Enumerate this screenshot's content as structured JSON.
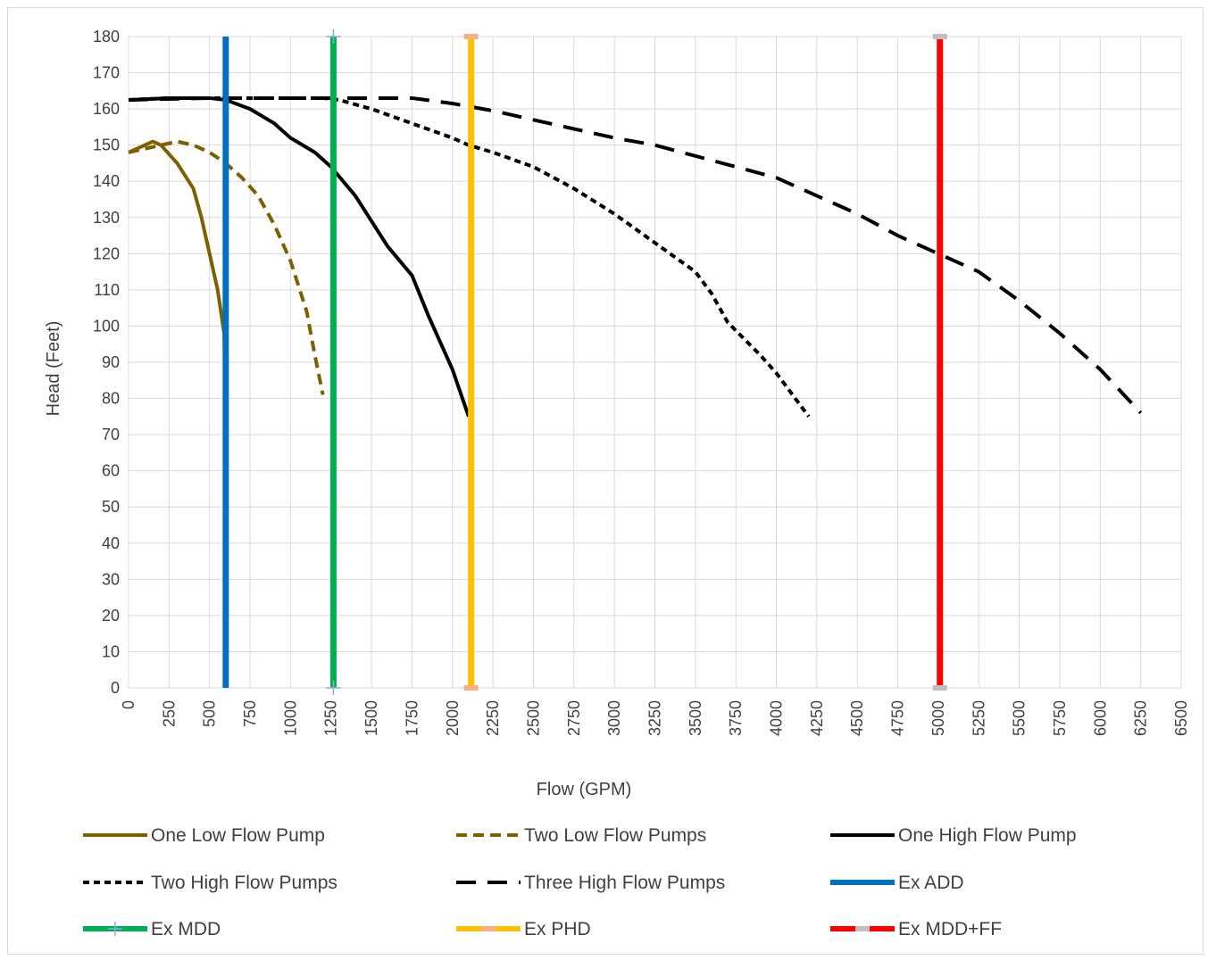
{
  "chart_data": {
    "type": "line",
    "title": "",
    "xlabel": "Flow (GPM)",
    "ylabel": "Head (Feet)",
    "xlim": [
      0,
      6500
    ],
    "ylim": [
      0,
      180
    ],
    "xticks": [
      0,
      250,
      500,
      750,
      1000,
      1250,
      1500,
      1750,
      2000,
      2250,
      2500,
      2750,
      3000,
      3250,
      3500,
      3750,
      4000,
      4250,
      4500,
      4750,
      5000,
      5250,
      5500,
      5750,
      6000,
      6250,
      6500
    ],
    "yticks": [
      0,
      10,
      20,
      30,
      40,
      50,
      60,
      70,
      80,
      90,
      100,
      110,
      120,
      130,
      140,
      150,
      160,
      170,
      180
    ],
    "grid": true,
    "legend_position": "bottom",
    "series": [
      {
        "name": "One Low Flow Pump",
        "color": "#7F6000",
        "style": "solid",
        "width": 4,
        "points": [
          [
            0,
            148
          ],
          [
            100,
            150
          ],
          [
            150,
            151
          ],
          [
            200,
            150
          ],
          [
            300,
            145
          ],
          [
            400,
            138
          ],
          [
            450,
            130
          ],
          [
            500,
            120
          ],
          [
            550,
            110
          ],
          [
            590,
            98
          ],
          [
            600,
            80
          ]
        ]
      },
      {
        "name": "Two Low Flow Pumps",
        "color": "#7F6000",
        "style": "dashed",
        "width": 4,
        "points": [
          [
            0,
            148
          ],
          [
            200,
            150
          ],
          [
            300,
            151
          ],
          [
            400,
            150
          ],
          [
            500,
            148
          ],
          [
            600,
            145
          ],
          [
            700,
            141
          ],
          [
            800,
            136
          ],
          [
            900,
            128
          ],
          [
            1000,
            118
          ],
          [
            1100,
            104
          ],
          [
            1150,
            92
          ],
          [
            1200,
            81
          ]
        ]
      },
      {
        "name": "One High Flow Pump",
        "color": "#000000",
        "style": "solid",
        "width": 4,
        "points": [
          [
            0,
            162.5
          ],
          [
            250,
            163
          ],
          [
            500,
            163
          ],
          [
            600,
            162.5
          ],
          [
            750,
            160
          ],
          [
            900,
            156
          ],
          [
            1000,
            152
          ],
          [
            1150,
            148
          ],
          [
            1250,
            144
          ],
          [
            1400,
            136
          ],
          [
            1500,
            129
          ],
          [
            1600,
            122
          ],
          [
            1750,
            114
          ],
          [
            1850,
            103
          ],
          [
            2000,
            88
          ],
          [
            2100,
            75
          ]
        ]
      },
      {
        "name": "Two High Flow Pumps",
        "color": "#000000",
        "style": "dotted",
        "width": 4,
        "points": [
          [
            0,
            162.5
          ],
          [
            250,
            163
          ],
          [
            500,
            163
          ],
          [
            1000,
            163
          ],
          [
            1200,
            163
          ],
          [
            1300,
            162.5
          ],
          [
            1500,
            160
          ],
          [
            1750,
            156
          ],
          [
            2000,
            152
          ],
          [
            2100,
            150
          ],
          [
            2250,
            148
          ],
          [
            2500,
            144
          ],
          [
            2750,
            138
          ],
          [
            3000,
            131
          ],
          [
            3250,
            123
          ],
          [
            3500,
            115
          ],
          [
            3600,
            109
          ],
          [
            3700,
            101
          ],
          [
            3900,
            92
          ],
          [
            4000,
            87
          ],
          [
            4100,
            81
          ],
          [
            4200,
            75
          ]
        ]
      },
      {
        "name": "Three High Flow Pumps",
        "color": "#000000",
        "style": "longdash",
        "width": 4,
        "points": [
          [
            0,
            162.5
          ],
          [
            500,
            163
          ],
          [
            1000,
            163
          ],
          [
            1500,
            163
          ],
          [
            1750,
            163
          ],
          [
            2000,
            161.5
          ],
          [
            2250,
            159.5
          ],
          [
            2500,
            157
          ],
          [
            2750,
            154.5
          ],
          [
            3000,
            152
          ],
          [
            3250,
            150
          ],
          [
            3500,
            147
          ],
          [
            3750,
            144
          ],
          [
            4000,
            141
          ],
          [
            4250,
            136
          ],
          [
            4500,
            131
          ],
          [
            4750,
            125
          ],
          [
            5000,
            120
          ],
          [
            5250,
            115
          ],
          [
            5500,
            107
          ],
          [
            5750,
            98
          ],
          [
            6000,
            88
          ],
          [
            6250,
            76
          ]
        ]
      },
      {
        "name": "Ex ADD",
        "color": "#0070C0",
        "style": "solid",
        "width": 7,
        "points": [
          [
            600,
            0
          ],
          [
            600,
            180
          ]
        ]
      },
      {
        "name": "Ex MDD",
        "color": "#00B050",
        "style": "solid",
        "width": 7,
        "marker": "plus",
        "marker_color": "#8EA9DB",
        "points": [
          [
            1265,
            0
          ],
          [
            1265,
            180
          ]
        ]
      },
      {
        "name": "Ex PHD",
        "color": "#FFC000",
        "style": "solid",
        "width": 7,
        "marker": "dash",
        "marker_color": "#F4B183",
        "points": [
          [
            2115,
            0
          ],
          [
            2115,
            180
          ]
        ]
      },
      {
        "name": "Ex MDD+FF",
        "color": "#FF0000",
        "style": "solid",
        "width": 7,
        "marker": "dash",
        "marker_color": "#BFBFBF",
        "points": [
          [
            5010,
            0
          ],
          [
            5010,
            180
          ]
        ]
      }
    ]
  }
}
